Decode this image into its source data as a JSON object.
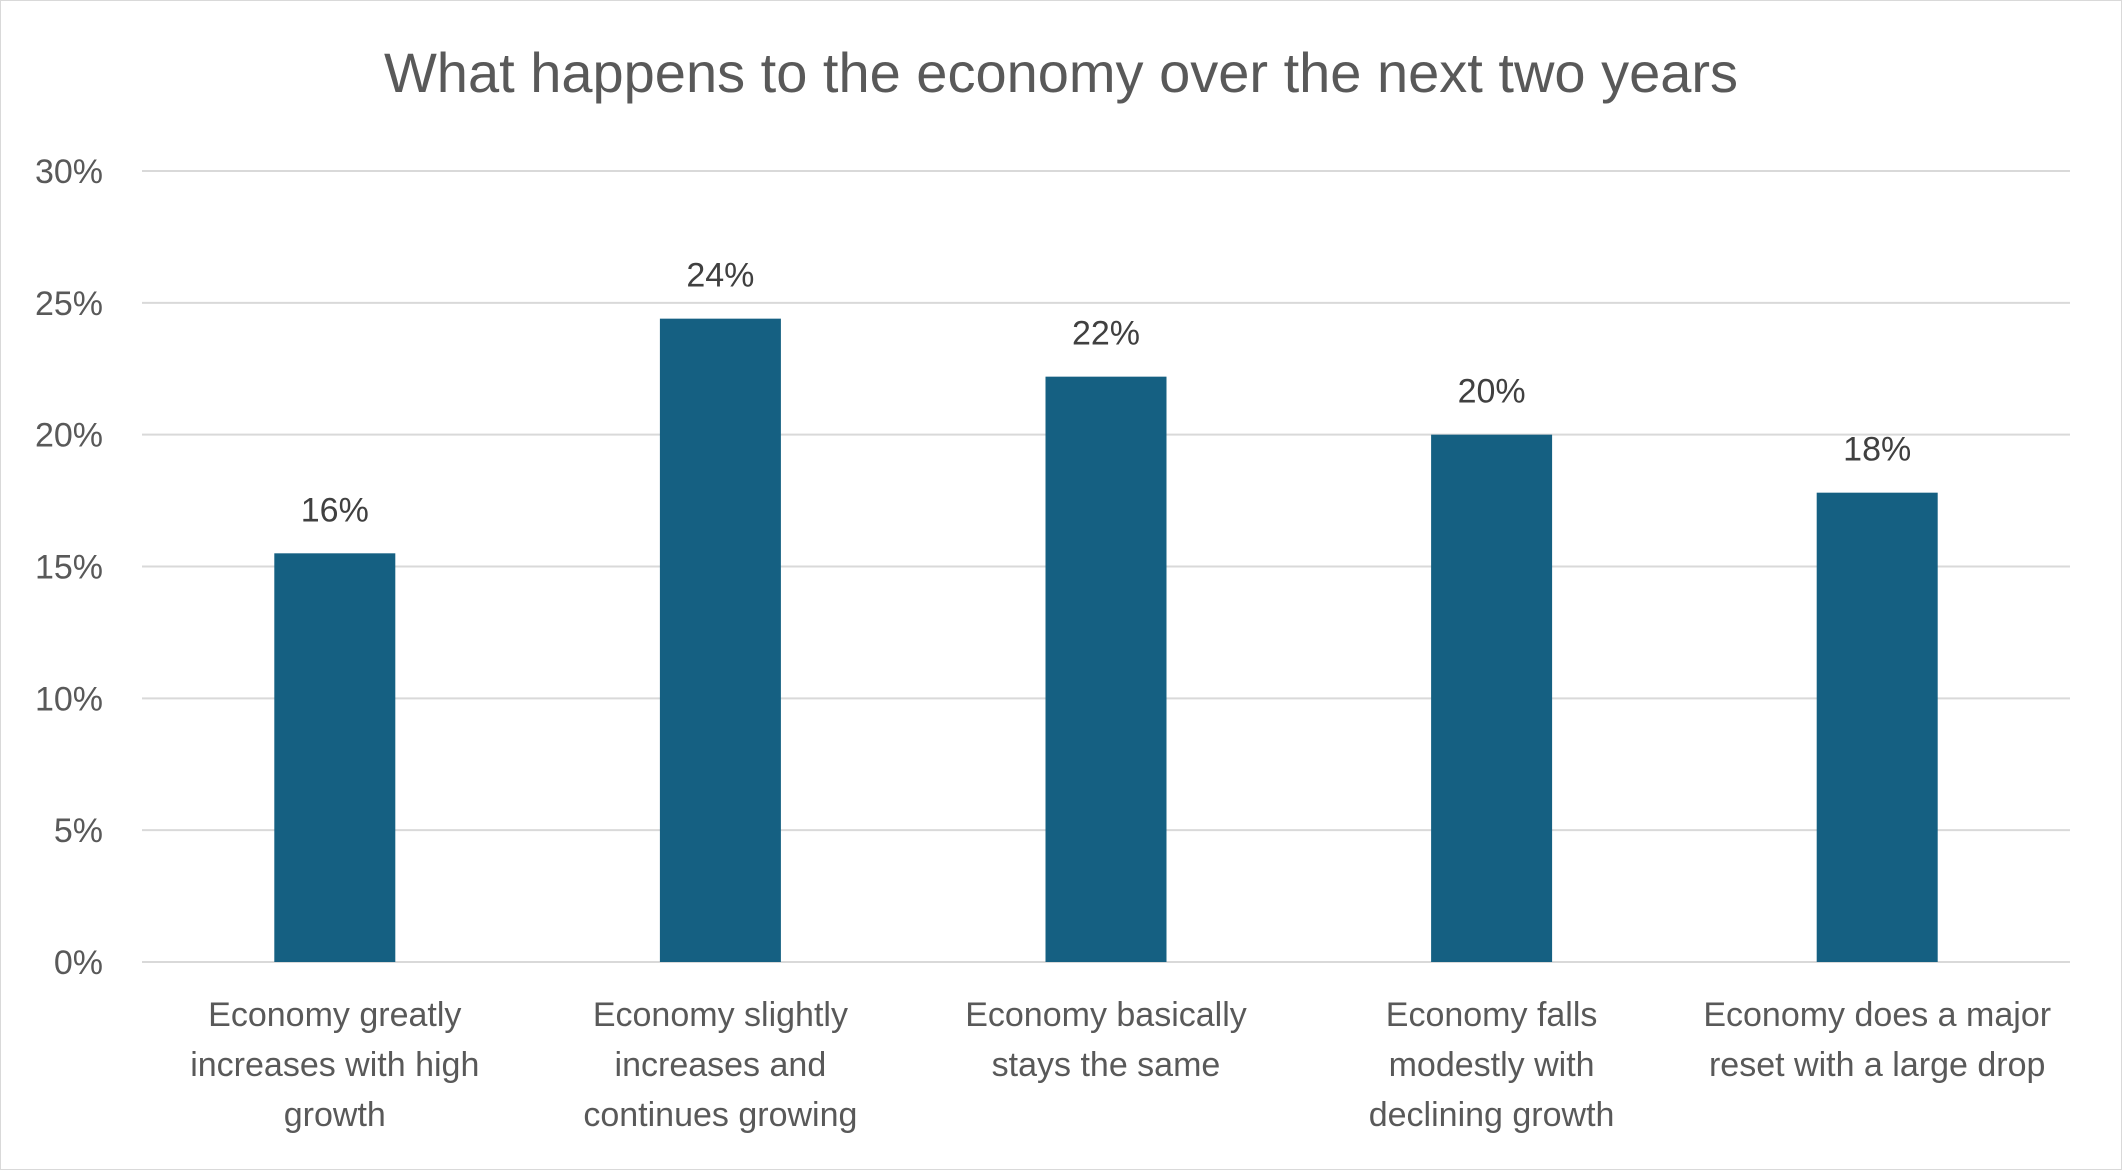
{
  "chart_data": {
    "type": "bar",
    "title": "What happens to the economy over the next two years",
    "xlabel": "",
    "ylabel": "",
    "categories": [
      [
        "Economy greatly",
        "increases with high",
        "growth"
      ],
      [
        "Economy slightly",
        "increases and",
        "continues growing"
      ],
      [
        "Economy basically",
        "stays the same"
      ],
      [
        "Economy falls",
        "modestly with",
        "declining growth"
      ],
      [
        "Economy does a major",
        "reset with a large drop"
      ]
    ],
    "values": [
      0.155,
      0.244,
      0.222,
      0.2,
      0.178
    ],
    "data_labels": [
      "16%",
      "24%",
      "22%",
      "20%",
      "18%"
    ],
    "ylim": [
      0,
      0.3
    ],
    "yticks": [
      0,
      0.05,
      0.1,
      0.15,
      0.2,
      0.25,
      0.3
    ],
    "ytick_labels": [
      "0%",
      "5%",
      "10%",
      "15%",
      "20%",
      "25%",
      "30%"
    ],
    "grid": true,
    "legend": "none",
    "bar_color": "#156082"
  }
}
